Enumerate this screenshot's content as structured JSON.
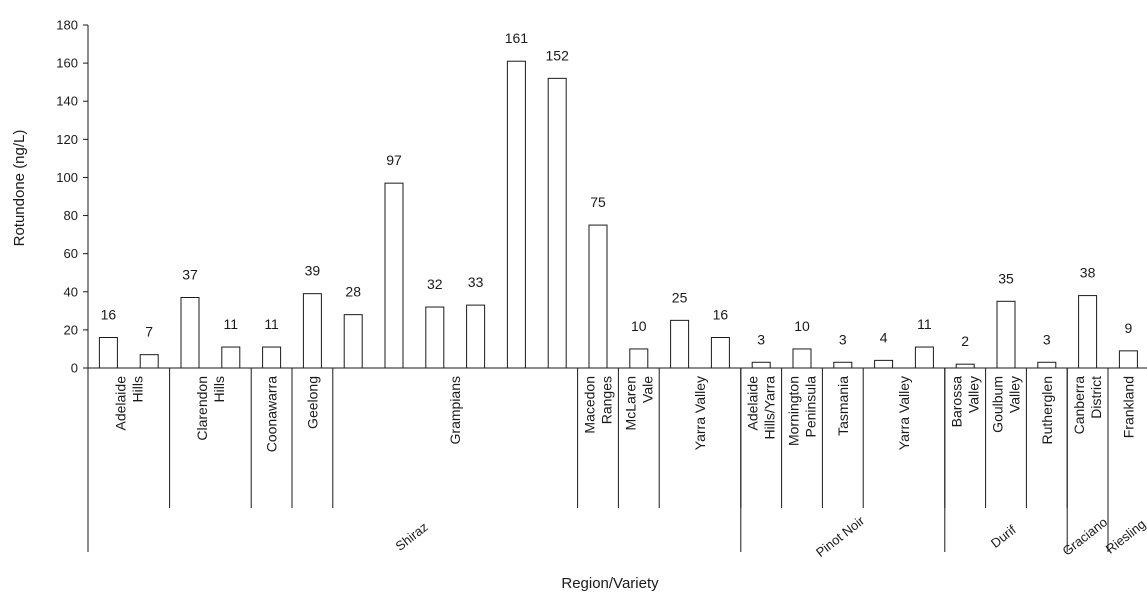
{
  "chart_data": {
    "type": "bar",
    "ylabel": "Rotundone (ng/L)",
    "xlabel": "Region/Variety",
    "ylim": [
      0,
      180
    ],
    "yticks": [
      0,
      20,
      40,
      60,
      80,
      100,
      120,
      140,
      160,
      180
    ],
    "values": [
      16,
      7,
      37,
      11,
      11,
      39,
      28,
      97,
      32,
      33,
      161,
      152,
      75,
      10,
      25,
      16,
      3,
      10,
      3,
      4,
      11,
      2,
      35,
      3,
      38,
      9
    ],
    "value_labels": [
      "16",
      "7",
      "37",
      "11",
      "11",
      "39",
      "28",
      "97",
      "32",
      "33",
      "161",
      "152",
      "75",
      "10",
      "25",
      "16",
      "3",
      "10",
      "3",
      "4",
      "11",
      "2",
      "35",
      "3",
      "38",
      "9"
    ],
    "regions": [
      {
        "label": "Adelaide Hills",
        "lines": [
          "Adelaide",
          "Hills"
        ],
        "bars": [
          0,
          1
        ]
      },
      {
        "label": "Clarendon Hills",
        "lines": [
          "Clarendon",
          "Hills"
        ],
        "bars": [
          2,
          3
        ]
      },
      {
        "label": "Coonawarra",
        "lines": [
          "Coonawarra"
        ],
        "bars": [
          4
        ]
      },
      {
        "label": "Geelong",
        "lines": [
          "Geelong"
        ],
        "bars": [
          5
        ]
      },
      {
        "label": "Grampians",
        "lines": [
          "Grampians"
        ],
        "bars": [
          6,
          7,
          8,
          9,
          10,
          11
        ]
      },
      {
        "label": "Macedon Ranges",
        "lines": [
          "Macedon",
          "Ranges"
        ],
        "bars": [
          12
        ]
      },
      {
        "label": "McLaren Vale",
        "lines": [
          "McLaren",
          "Vale"
        ],
        "bars": [
          13
        ]
      },
      {
        "label": "Yarra Valley",
        "lines": [
          "Yarra Valley"
        ],
        "bars": [
          14,
          15
        ]
      },
      {
        "label": "Adelaide Hills/Yarra",
        "lines": [
          "Adelaide",
          "Hills/Yarra"
        ],
        "bars": [
          16
        ]
      },
      {
        "label": "Mornington Peninsula",
        "lines": [
          "Mornington",
          "Peninsula"
        ],
        "bars": [
          17
        ]
      },
      {
        "label": "Tasmania",
        "lines": [
          "Tasmania"
        ],
        "bars": [
          18
        ]
      },
      {
        "label": "Yarra Valley",
        "lines": [
          "Yarra Valley"
        ],
        "bars": [
          19,
          20
        ]
      },
      {
        "label": "Barossa Valley",
        "lines": [
          "Barossa",
          "Valley"
        ],
        "bars": [
          21
        ]
      },
      {
        "label": "Goulburn Valley",
        "lines": [
          "Goulbum",
          "Valley"
        ],
        "bars": [
          22
        ]
      },
      {
        "label": "Rutherglen",
        "lines": [
          "Rutherglen"
        ],
        "bars": [
          23
        ]
      },
      {
        "label": "Canberra District",
        "lines": [
          "Canberra",
          "District"
        ],
        "bars": [
          24
        ]
      },
      {
        "label": "Frankland",
        "lines": [
          "Frankland"
        ],
        "bars": [
          25
        ]
      }
    ],
    "varieties": [
      {
        "label": "Shiraz",
        "bars": [
          0,
          15
        ]
      },
      {
        "label": "Pinot Noir",
        "bars": [
          16,
          20
        ]
      },
      {
        "label": "Durif",
        "bars": [
          21,
          23
        ]
      },
      {
        "label": "Graciano",
        "bars": [
          24,
          24
        ]
      },
      {
        "label": "Riesling",
        "bars": [
          25,
          25
        ]
      }
    ]
  }
}
